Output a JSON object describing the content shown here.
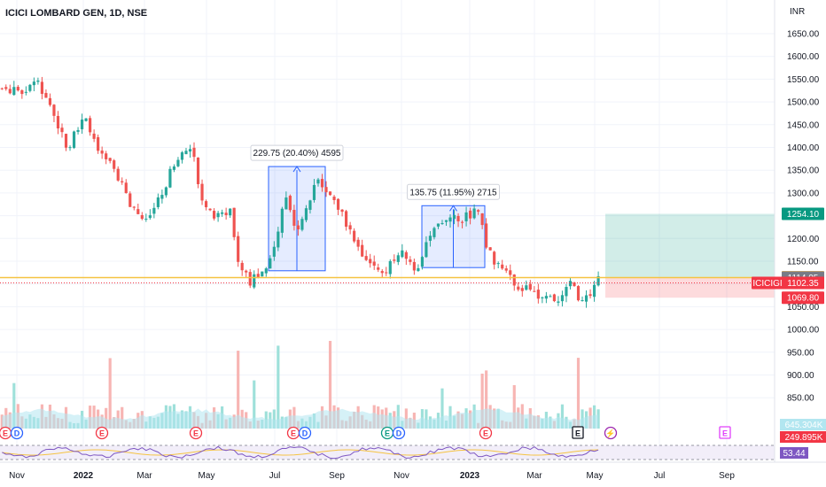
{
  "chart_data": {
    "type": "candlestick",
    "title": "ICICI LOMBARD GEN, 1D, NSE",
    "currency": "INR",
    "price_axis": {
      "ticks": [
        "1650.00",
        "1600.00",
        "1550.00",
        "1500.00",
        "1450.00",
        "1400.00",
        "1350.00",
        "1300.00",
        "1250.00",
        "1200.00",
        "1150.00",
        "1100.00",
        "1050.00",
        "1000.00",
        "950.00",
        "900.00",
        "850.00"
      ],
      "range": [
        810,
        1680
      ]
    },
    "time_axis": {
      "ticks": [
        {
          "label": "Nov",
          "bold": false
        },
        {
          "label": "2022",
          "bold": true
        },
        {
          "label": "Mar",
          "bold": false
        },
        {
          "label": "May",
          "bold": false
        },
        {
          "label": "Jul",
          "bold": false
        },
        {
          "label": "Sep",
          "bold": false
        },
        {
          "label": "Nov",
          "bold": false
        },
        {
          "label": "2023",
          "bold": true
        },
        {
          "label": "Mar",
          "bold": false
        },
        {
          "label": "May",
          "bold": false
        },
        {
          "label": "Jul",
          "bold": false
        },
        {
          "label": "Sep",
          "bold": false
        }
      ]
    },
    "series_path": [
      {
        "t": 0,
        "p": 1530
      },
      {
        "t": 0.03,
        "p": 1520
      },
      {
        "t": 0.05,
        "p": 1545
      },
      {
        "t": 0.07,
        "p": 1480
      },
      {
        "t": 0.09,
        "p": 1400
      },
      {
        "t": 0.11,
        "p": 1470
      },
      {
        "t": 0.12,
        "p": 1430
      },
      {
        "t": 0.13,
        "p": 1380
      },
      {
        "t": 0.15,
        "p": 1360
      },
      {
        "t": 0.17,
        "p": 1270
      },
      {
        "t": 0.19,
        "p": 1230
      },
      {
        "t": 0.21,
        "p": 1290
      },
      {
        "t": 0.23,
        "p": 1380
      },
      {
        "t": 0.25,
        "p": 1400
      },
      {
        "t": 0.26,
        "p": 1300
      },
      {
        "t": 0.28,
        "p": 1250
      },
      {
        "t": 0.3,
        "p": 1260
      },
      {
        "t": 0.31,
        "p": 1150
      },
      {
        "t": 0.325,
        "p": 1105
      },
      {
        "t": 0.34,
        "p": 1120
      },
      {
        "t": 0.36,
        "p": 1200
      },
      {
        "t": 0.37,
        "p": 1290
      },
      {
        "t": 0.385,
        "p": 1220
      },
      {
        "t": 0.4,
        "p": 1280
      },
      {
        "t": 0.415,
        "p": 1335
      },
      {
        "t": 0.425,
        "p": 1290
      },
      {
        "t": 0.44,
        "p": 1270
      },
      {
        "t": 0.46,
        "p": 1200
      },
      {
        "t": 0.48,
        "p": 1140
      },
      {
        "t": 0.5,
        "p": 1130
      },
      {
        "t": 0.52,
        "p": 1170
      },
      {
        "t": 0.54,
        "p": 1130
      },
      {
        "t": 0.56,
        "p": 1210
      },
      {
        "t": 0.58,
        "p": 1240
      },
      {
        "t": 0.6,
        "p": 1245
      },
      {
        "t": 0.62,
        "p": 1265
      },
      {
        "t": 0.63,
        "p": 1180
      },
      {
        "t": 0.65,
        "p": 1130
      },
      {
        "t": 0.67,
        "p": 1100
      },
      {
        "t": 0.69,
        "p": 1080
      },
      {
        "t": 0.71,
        "p": 1065
      },
      {
        "t": 0.73,
        "p": 1070
      },
      {
        "t": 0.74,
        "p": 1105
      },
      {
        "t": 0.75,
        "p": 1060
      },
      {
        "t": 0.765,
        "p": 1085
      },
      {
        "t": 0.775,
        "p": 1114
      }
    ],
    "candle_count": 150,
    "support_level": 1114.05,
    "measurements": [
      {
        "label": "229.75 (20.40%) 4595",
        "from_price": 1129,
        "to_price": 1358
      },
      {
        "label": "135.75 (11.95%) 2715",
        "from_price": 1136,
        "to_price": 1272
      }
    ],
    "position": {
      "entry": 1114.7,
      "target": 1254.1,
      "stop": 1069.8
    },
    "price_tags": [
      {
        "label": "1254.10",
        "value": 1254.1,
        "color": "#089981"
      },
      {
        "label": "1114.70",
        "value": 1114.7,
        "color": "#f5a623"
      },
      {
        "label": "1114.05",
        "value": 1114.05,
        "color": "#787b86"
      },
      {
        "label": "1102.35",
        "value": 1102.35,
        "color": "#f23645"
      },
      {
        "label": "1069.80",
        "value": 1069.8,
        "color": "#f23645"
      }
    ],
    "symbol_tag": "ICICIGI",
    "volume": {
      "label": "645.304K",
      "ma_label": "249.895K"
    },
    "rsi": {
      "value": "53.44"
    },
    "events": [
      {
        "glyph": "E",
        "kind": "earnings"
      },
      {
        "glyph": "D",
        "kind": "dividend"
      },
      {
        "glyph": "E",
        "kind": "earnings"
      },
      {
        "glyph": "E",
        "kind": "earnings"
      },
      {
        "glyph": "E",
        "kind": "earnings"
      },
      {
        "glyph": "E",
        "kind": "earnings"
      },
      {
        "glyph": "D",
        "kind": "dividend"
      },
      {
        "glyph": "E",
        "kind": "earnings"
      },
      {
        "glyph": "D",
        "kind": "dividend"
      },
      {
        "glyph": "E",
        "kind": "earnings"
      },
      {
        "glyph": "E",
        "kind": "earnings-future"
      },
      {
        "glyph": "⚡",
        "kind": "split"
      },
      {
        "glyph": "E",
        "kind": "earnings-upcoming"
      }
    ],
    "grid": true,
    "colors": {
      "up": "#26a69a",
      "down": "#ef5350",
      "volume_up": "#9ee0da",
      "volume_down": "#f7b5b3",
      "ma": "#b2e6f0",
      "rsi": "#7e57c2",
      "rsi_band": "#ede7f6"
    }
  }
}
